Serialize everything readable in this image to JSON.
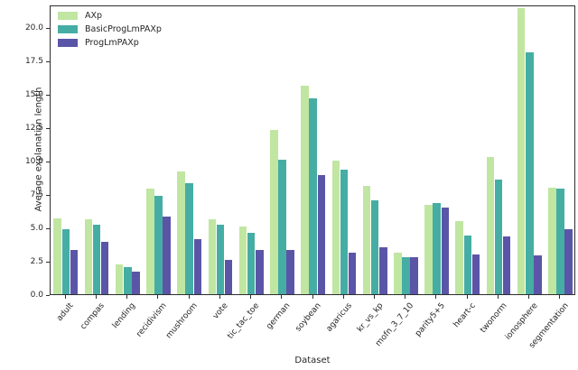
{
  "chart_data": {
    "type": "bar",
    "title": "",
    "xlabel": "Dataset",
    "ylabel": "Average explanation length",
    "categories": [
      "adult",
      "compas",
      "lending",
      "recidivism",
      "mushroom",
      "vote",
      "tic_tac_toe",
      "german",
      "soybean",
      "agaricus",
      "kr_vs_kp",
      "mofn_3_7_10",
      "parity5+5",
      "heart-c",
      "twonorm",
      "ionosphere",
      "segmentation"
    ],
    "series": [
      {
        "name": "AXp",
        "color": "#c0e6a2",
        "values": [
          5.7,
          5.6,
          2.2,
          7.9,
          9.2,
          5.6,
          5.1,
          12.3,
          15.6,
          10.0,
          8.1,
          3.1,
          6.7,
          5.5,
          10.3,
          21.4,
          8.0
        ]
      },
      {
        "name": "BasicProgLmPAXp",
        "color": "#45ada4",
        "values": [
          4.9,
          5.2,
          2.0,
          7.4,
          8.3,
          5.2,
          4.6,
          10.1,
          14.7,
          9.3,
          7.0,
          2.8,
          6.8,
          4.4,
          8.6,
          18.1,
          7.9
        ]
      },
      {
        "name": "ProgLmPAXp",
        "color": "#5b55a7",
        "values": [
          3.3,
          3.9,
          1.7,
          5.8,
          4.1,
          2.6,
          3.3,
          3.3,
          8.9,
          3.1,
          3.5,
          2.8,
          6.5,
          3.0,
          4.3,
          2.9,
          4.9
        ]
      }
    ],
    "ylim": [
      0,
      21.7
    ],
    "ytick_labels": [
      "0.0",
      "2.5",
      "5.0",
      "7.5",
      "10.0",
      "12.5",
      "15.0",
      "17.5",
      "20.0"
    ],
    "legend_position": "upper left",
    "grid": false,
    "axis_color": "#2e2e2e"
  }
}
